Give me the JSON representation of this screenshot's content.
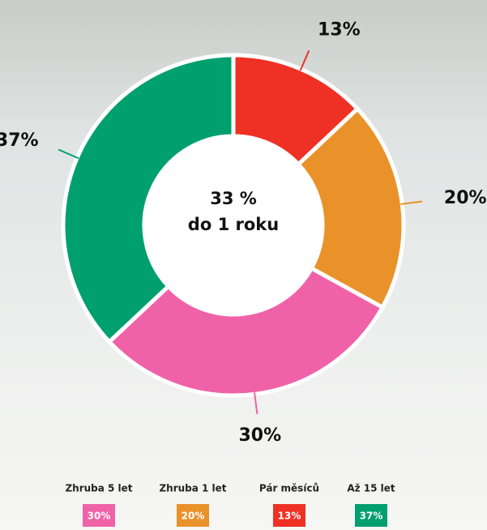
{
  "chart_data": {
    "type": "donut",
    "categories": [
      "Zhruba 5 let",
      "Zhruba 1 let",
      "Pár měsíců",
      "Až 15 let"
    ],
    "values": [
      30,
      20,
      13,
      37
    ],
    "value_labels": [
      "30%",
      "20%",
      "13%",
      "37%"
    ],
    "colors": [
      "#f062a8",
      "#e9922a",
      "#ee3124",
      "#00a06e"
    ],
    "center_label": [
      "33 %",
      "do 1 roku"
    ]
  }
}
